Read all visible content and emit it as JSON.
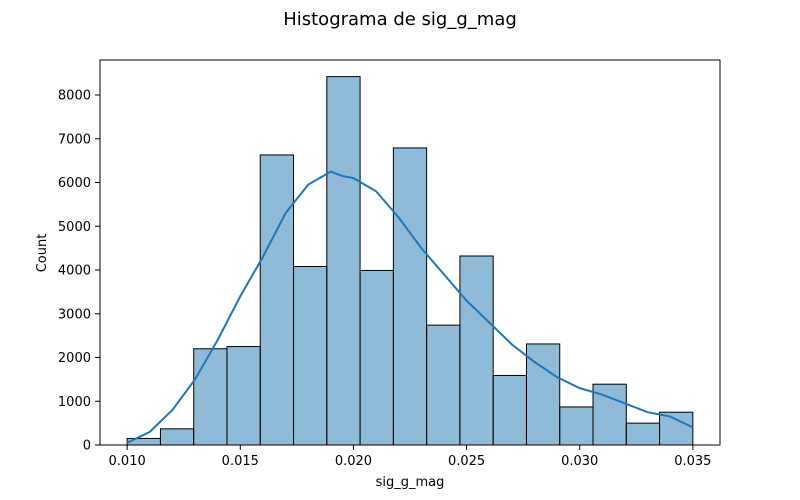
{
  "chart_data": {
    "type": "bar",
    "title": "Histograma de sig_g_mag",
    "xlabel": "sig_g_mag",
    "ylabel": "Count",
    "xlim": [
      0.0088,
      0.0362
    ],
    "ylim": [
      0,
      8800
    ],
    "xticks": [
      0.01,
      0.015,
      0.02,
      0.025,
      0.03,
      0.035
    ],
    "xtick_labels": [
      "0.010",
      "0.015",
      "0.020",
      "0.025",
      "0.030",
      "0.035"
    ],
    "yticks": [
      0,
      1000,
      2000,
      3000,
      4000,
      5000,
      6000,
      7000,
      8000
    ],
    "ytick_labels": [
      "0",
      "1000",
      "2000",
      "3000",
      "4000",
      "5000",
      "6000",
      "7000",
      "8000"
    ],
    "bins": [
      {
        "x0": 0.01,
        "x1": 0.011471,
        "count": 150
      },
      {
        "x0": 0.011471,
        "x1": 0.012941,
        "count": 370
      },
      {
        "x0": 0.012941,
        "x1": 0.014412,
        "count": 2200
      },
      {
        "x0": 0.014412,
        "x1": 0.015882,
        "count": 2250
      },
      {
        "x0": 0.015882,
        "x1": 0.017353,
        "count": 6630
      },
      {
        "x0": 0.017353,
        "x1": 0.018824,
        "count": 4080
      },
      {
        "x0": 0.018824,
        "x1": 0.020294,
        "count": 8420
      },
      {
        "x0": 0.020294,
        "x1": 0.021765,
        "count": 3990
      },
      {
        "x0": 0.021765,
        "x1": 0.023235,
        "count": 6790
      },
      {
        "x0": 0.023235,
        "x1": 0.024706,
        "count": 2740
      },
      {
        "x0": 0.024706,
        "x1": 0.026176,
        "count": 4320
      },
      {
        "x0": 0.026176,
        "x1": 0.027647,
        "count": 1590
      },
      {
        "x0": 0.027647,
        "x1": 0.029118,
        "count": 2310
      },
      {
        "x0": 0.029118,
        "x1": 0.030588,
        "count": 870
      },
      {
        "x0": 0.030588,
        "x1": 0.032059,
        "count": 1390
      },
      {
        "x0": 0.032059,
        "x1": 0.033529,
        "count": 500
      },
      {
        "x0": 0.033529,
        "x1": 0.035,
        "count": 750
      }
    ],
    "kde": {
      "x": [
        0.01,
        0.011,
        0.012,
        0.013,
        0.014,
        0.015,
        0.016,
        0.017,
        0.018,
        0.0185,
        0.019,
        0.0195,
        0.02,
        0.021,
        0.022,
        0.023,
        0.024,
        0.025,
        0.026,
        0.027,
        0.028,
        0.029,
        0.03,
        0.031,
        0.032,
        0.033,
        0.034,
        0.035
      ],
      "y": [
        50,
        300,
        800,
        1500,
        2400,
        3400,
        4300,
        5300,
        5950,
        6100,
        6250,
        6150,
        6100,
        5800,
        5200,
        4500,
        3900,
        3300,
        2800,
        2300,
        1900,
        1550,
        1300,
        1150,
        950,
        750,
        650,
        400
      ]
    },
    "colors": {
      "bar_fill": "#1f77b4",
      "bar_fill_opacity": "0.5",
      "bar_edge": "#000000",
      "kde_line": "#1f77b4"
    },
    "grid": false,
    "legend": "none"
  }
}
